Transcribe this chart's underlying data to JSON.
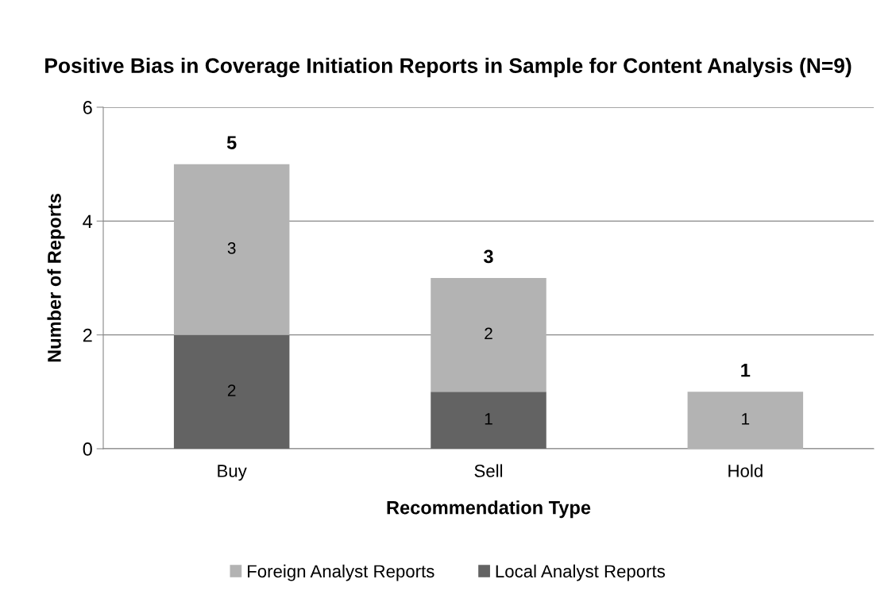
{
  "chart_data": {
    "type": "bar",
    "title": "Positive Bias in Coverage Initiation Reports in Sample for Content Analysis (N=9)",
    "xlabel": "Recommendation Type",
    "ylabel": "Number of Reports",
    "categories": [
      "Buy",
      "Sell",
      "Hold"
    ],
    "stacked": true,
    "series": [
      {
        "name": "Local Analyst Reports",
        "color": "#636363",
        "values": [
          2,
          1,
          0
        ],
        "value_labels": [
          "2",
          "1",
          null
        ]
      },
      {
        "name": "Foreign Analyst Reports",
        "color": "#b3b3b3",
        "values": [
          3,
          2,
          1
        ],
        "value_labels": [
          "3",
          "2",
          "1"
        ]
      }
    ],
    "totals": [
      "5",
      "3",
      "1"
    ],
    "ylim": [
      0,
      6
    ],
    "yticks": [
      0,
      2,
      4,
      6
    ],
    "grid": "y",
    "legend": "bottom"
  }
}
